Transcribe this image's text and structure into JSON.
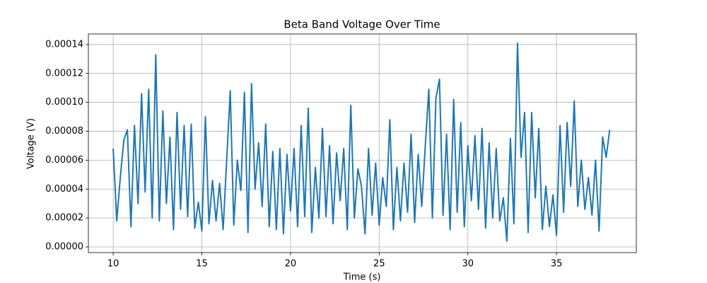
{
  "chart_data": {
    "type": "line",
    "title": "Beta Band Voltage Over Time",
    "x_label": "Time (s)",
    "y_label": "Voltage (V)",
    "x": [
      10.0,
      10.2,
      10.4,
      10.6,
      10.8,
      11.0,
      11.2,
      11.4,
      11.6,
      11.8,
      12.0,
      12.2,
      12.4,
      12.6,
      12.8,
      13.0,
      13.2,
      13.4,
      13.6,
      13.8,
      14.0,
      14.2,
      14.4,
      14.6,
      14.8,
      15.0,
      15.2,
      15.4,
      15.6,
      15.8,
      16.0,
      16.2,
      16.4,
      16.6,
      16.8,
      17.0,
      17.2,
      17.4,
      17.6,
      17.8,
      18.0,
      18.2,
      18.4,
      18.6,
      18.8,
      19.0,
      19.2,
      19.4,
      19.6,
      19.8,
      20.0,
      20.2,
      20.4,
      20.6,
      20.8,
      21.0,
      21.2,
      21.4,
      21.6,
      21.8,
      22.0,
      22.2,
      22.4,
      22.6,
      22.8,
      23.0,
      23.2,
      23.4,
      23.6,
      23.8,
      24.0,
      24.2,
      24.4,
      24.6,
      24.8,
      25.0,
      25.2,
      25.4,
      25.6,
      25.8,
      26.0,
      26.2,
      26.4,
      26.6,
      26.8,
      27.0,
      27.2,
      27.4,
      27.6,
      27.8,
      28.0,
      28.2,
      28.4,
      28.6,
      28.8,
      29.0,
      29.2,
      29.4,
      29.6,
      29.8,
      30.0,
      30.2,
      30.4,
      30.6,
      30.8,
      31.0,
      31.2,
      31.4,
      31.6,
      31.8,
      32.0,
      32.2,
      32.4,
      32.6,
      32.8,
      33.0,
      33.2,
      33.4,
      33.6,
      33.8,
      34.0,
      34.2,
      34.4,
      34.6,
      34.8,
      35.0,
      35.2,
      35.4,
      35.6,
      35.8,
      36.0,
      36.2,
      36.4,
      36.6,
      36.8,
      37.0,
      37.2,
      37.4,
      37.6,
      37.8,
      38.0
    ],
    "values": [
      6.8e-05,
      1.8e-05,
      4.8e-05,
      7.4e-05,
      8.1e-05,
      1.4e-05,
      8.4e-05,
      3e-05,
      0.000106,
      3.8e-05,
      0.000109,
      2e-05,
      0.000133,
      1.8e-05,
      9.4e-05,
      3e-05,
      7.6e-05,
      1.2e-05,
      9.3e-05,
      2.6e-05,
      8.4e-05,
      2.1e-05,
      8.5e-05,
      1.3e-05,
      3.1e-05,
      1.1e-05,
      9e-05,
      1.6e-05,
      4.6e-05,
      1.8e-05,
      4.4e-05,
      1.2e-05,
      6e-05,
      0.000108,
      1.5e-05,
      6e-05,
      3.9e-05,
      0.000107,
      1e-05,
      0.000113,
      4e-05,
      7.2e-05,
      2.8e-05,
      8.5e-05,
      1.4e-05,
      6.6e-05,
      1.2e-05,
      6.8e-05,
      9e-06,
      6.4e-05,
      2.5e-05,
      6.8e-05,
      1.4e-05,
      8.4e-05,
      2.1e-05,
      9.6e-05,
      1e-05,
      5.5e-05,
      2e-05,
      8.2e-05,
      2.1e-05,
      7e-05,
      1.6e-05,
      6.5e-05,
      3.2e-05,
      6.8e-05,
      1.2e-05,
      9.8e-05,
      2e-05,
      5.4e-05,
      4.2e-05,
      9e-06,
      6.8e-05,
      2.2e-05,
      5.8e-05,
      1.5e-05,
      4.8e-05,
      2.8e-05,
      8.8e-05,
      1.2e-05,
      5.5e-05,
      1.8e-05,
      5.8e-05,
      2.4e-05,
      7.8e-05,
      1.7e-05,
      6.4e-05,
      2.8e-05,
      7e-05,
      0.000109,
      2e-05,
      0.000103,
      0.000116,
      2.2e-05,
      7.8e-05,
      1.2e-05,
      0.000102,
      2.4e-05,
      8.6e-05,
      1.4e-05,
      7e-05,
      3.2e-05,
      7.7e-05,
      2.6e-05,
      8.2e-05,
      1.3e-05,
      7.2e-05,
      2e-05,
      6.8e-05,
      1.8e-05,
      3.4e-05,
      4e-06,
      7.5e-05,
      1.6e-05,
      0.000141,
      6.2e-05,
      9.3e-05,
      1e-05,
      9.3e-05,
      3.4e-05,
      8.2e-05,
      1.2e-05,
      4.2e-05,
      1.4e-05,
      3.6e-05,
      8e-06,
      8.4e-05,
      2.4e-05,
      8.6e-05,
      4.2e-05,
      0.000101,
      2.8e-05,
      6e-05,
      2.6e-05,
      4.8e-05,
      2.2e-05,
      6e-05,
      1.1e-05,
      7.6e-05,
      6.2e-05,
      8.1e-05
    ],
    "color": "#1f77b4",
    "xlim": [
      8.6,
      39.5
    ],
    "xticks": [
      10,
      15,
      20,
      25,
      30,
      35
    ],
    "ylim": [
      -3.9e-06,
      0.0001473
    ],
    "yticks": [
      {
        "value": 0,
        "label": "0.00000"
      },
      {
        "value": 2e-05,
        "label": "0.00002"
      },
      {
        "value": 4e-05,
        "label": "0.00004"
      },
      {
        "value": 6e-05,
        "label": "0.00006"
      },
      {
        "value": 8e-05,
        "label": "0.00008"
      },
      {
        "value": 0.0001,
        "label": "0.00010"
      },
      {
        "value": 0.00012,
        "label": "0.00012"
      },
      {
        "value": 0.00014,
        "label": "0.00014"
      }
    ],
    "grid": true
  }
}
